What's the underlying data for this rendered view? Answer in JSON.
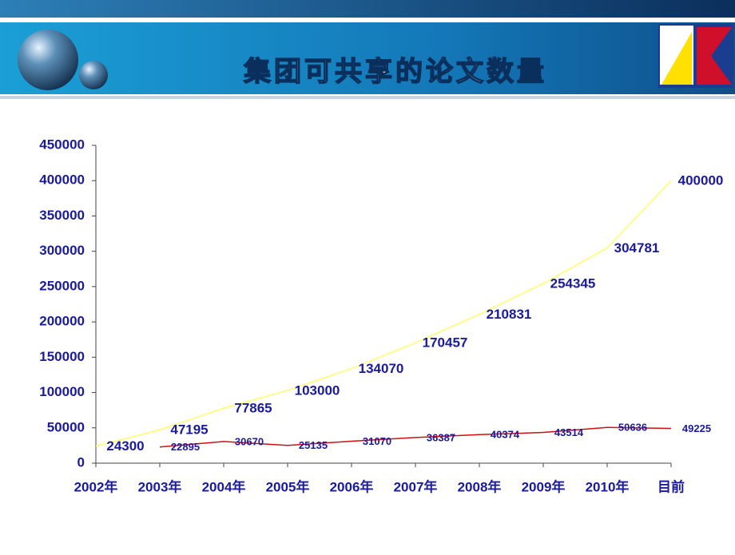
{
  "chart_data": {
    "type": "line",
    "title": "集团可共享的论文数量",
    "categories": [
      "2002年",
      "2003年",
      "2004年",
      "2005年",
      "2006年",
      "2007年",
      "2008年",
      "2009年",
      "2010年",
      "目前"
    ],
    "series": [
      {
        "color": "#ffff66",
        "values": [
          24300,
          47195,
          77865,
          103000,
          134070,
          170457,
          210831,
          254345,
          304781,
          400000
        ]
      },
      {
        "color": "#d01010",
        "values": [
          null,
          22895,
          30670,
          25135,
          31070,
          36387,
          40374,
          43514,
          50636,
          49225
        ]
      }
    ],
    "ylim": [
      0,
      450000
    ],
    "yticks": [
      0,
      50000,
      100000,
      150000,
      200000,
      250000,
      300000,
      350000,
      400000,
      450000
    ]
  }
}
